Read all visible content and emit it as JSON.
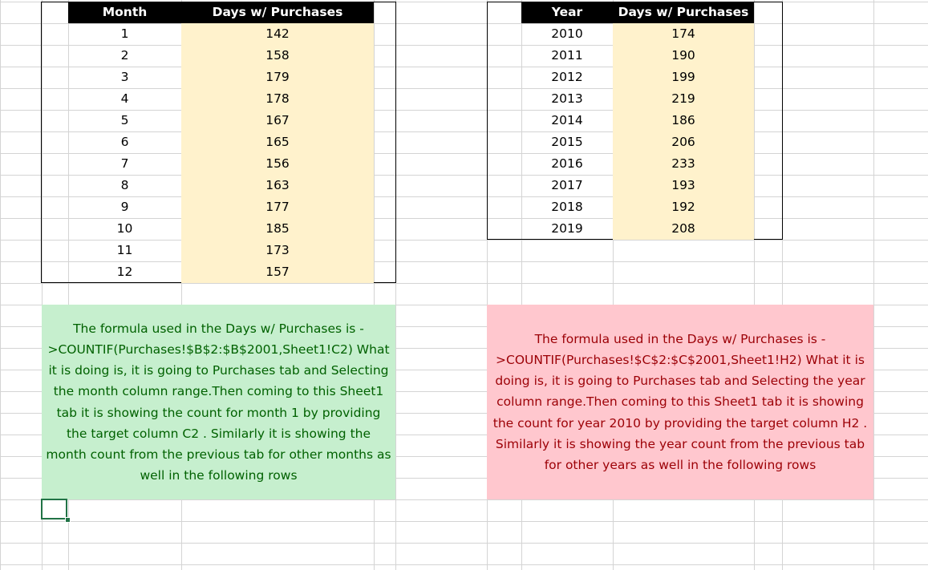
{
  "table_month": {
    "headers": {
      "month": "Month",
      "days": "Days w/ Purchases"
    },
    "rows": [
      {
        "key": "1",
        "days": "142"
      },
      {
        "key": "2",
        "days": "158"
      },
      {
        "key": "3",
        "days": "179"
      },
      {
        "key": "4",
        "days": "178"
      },
      {
        "key": "5",
        "days": "167"
      },
      {
        "key": "6",
        "days": "165"
      },
      {
        "key": "7",
        "days": "156"
      },
      {
        "key": "8",
        "days": "163"
      },
      {
        "key": "9",
        "days": "177"
      },
      {
        "key": "10",
        "days": "185"
      },
      {
        "key": "11",
        "days": "173"
      },
      {
        "key": "12",
        "days": "157"
      }
    ]
  },
  "table_year": {
    "headers": {
      "year": "Year",
      "days": "Days w/ Purchases"
    },
    "rows": [
      {
        "key": "2010",
        "days": "174"
      },
      {
        "key": "2011",
        "days": "190"
      },
      {
        "key": "2012",
        "days": "199"
      },
      {
        "key": "2013",
        "days": "219"
      },
      {
        "key": "2014",
        "days": "186"
      },
      {
        "key": "2015",
        "days": "206"
      },
      {
        "key": "2016",
        "days": "233"
      },
      {
        "key": "2017",
        "days": "193"
      },
      {
        "key": "2018",
        "days": "192"
      },
      {
        "key": "2019",
        "days": "208"
      }
    ]
  },
  "notes": {
    "month": "The formula used in the Days w/ Purchases is ->COUNTIF(Purchases!$B$2:$B$2001,Sheet1!C2) What it is doing is, it is going to Purchases tab and Selecting the month column range.Then coming to this Sheet1 tab it is showing the count for month 1 by providing the target column C2 . Similarly it is showing the month count from the previous tab for other months as well in the following rows",
    "year": "The formula used in the Days w/ Purchases is ->COUNTIF(Purchases!$C$2:$C$2001,Sheet1!H2) What it is doing is, it is going to Purchases tab and Selecting the year column range.Then coming to this Sheet1 tab it is showing the count for year 2010 by providing the target column H2 . Similarly it is showing the year count from the previous tab for other years as well in the following rows"
  },
  "colors": {
    "header_bg": "#000000",
    "value_fill": "#fff2cc",
    "note_green_bg": "#c6efce",
    "note_green_text": "#006100",
    "note_red_bg": "#ffc7ce",
    "note_red_text": "#9c0006",
    "selection": "#217346"
  }
}
